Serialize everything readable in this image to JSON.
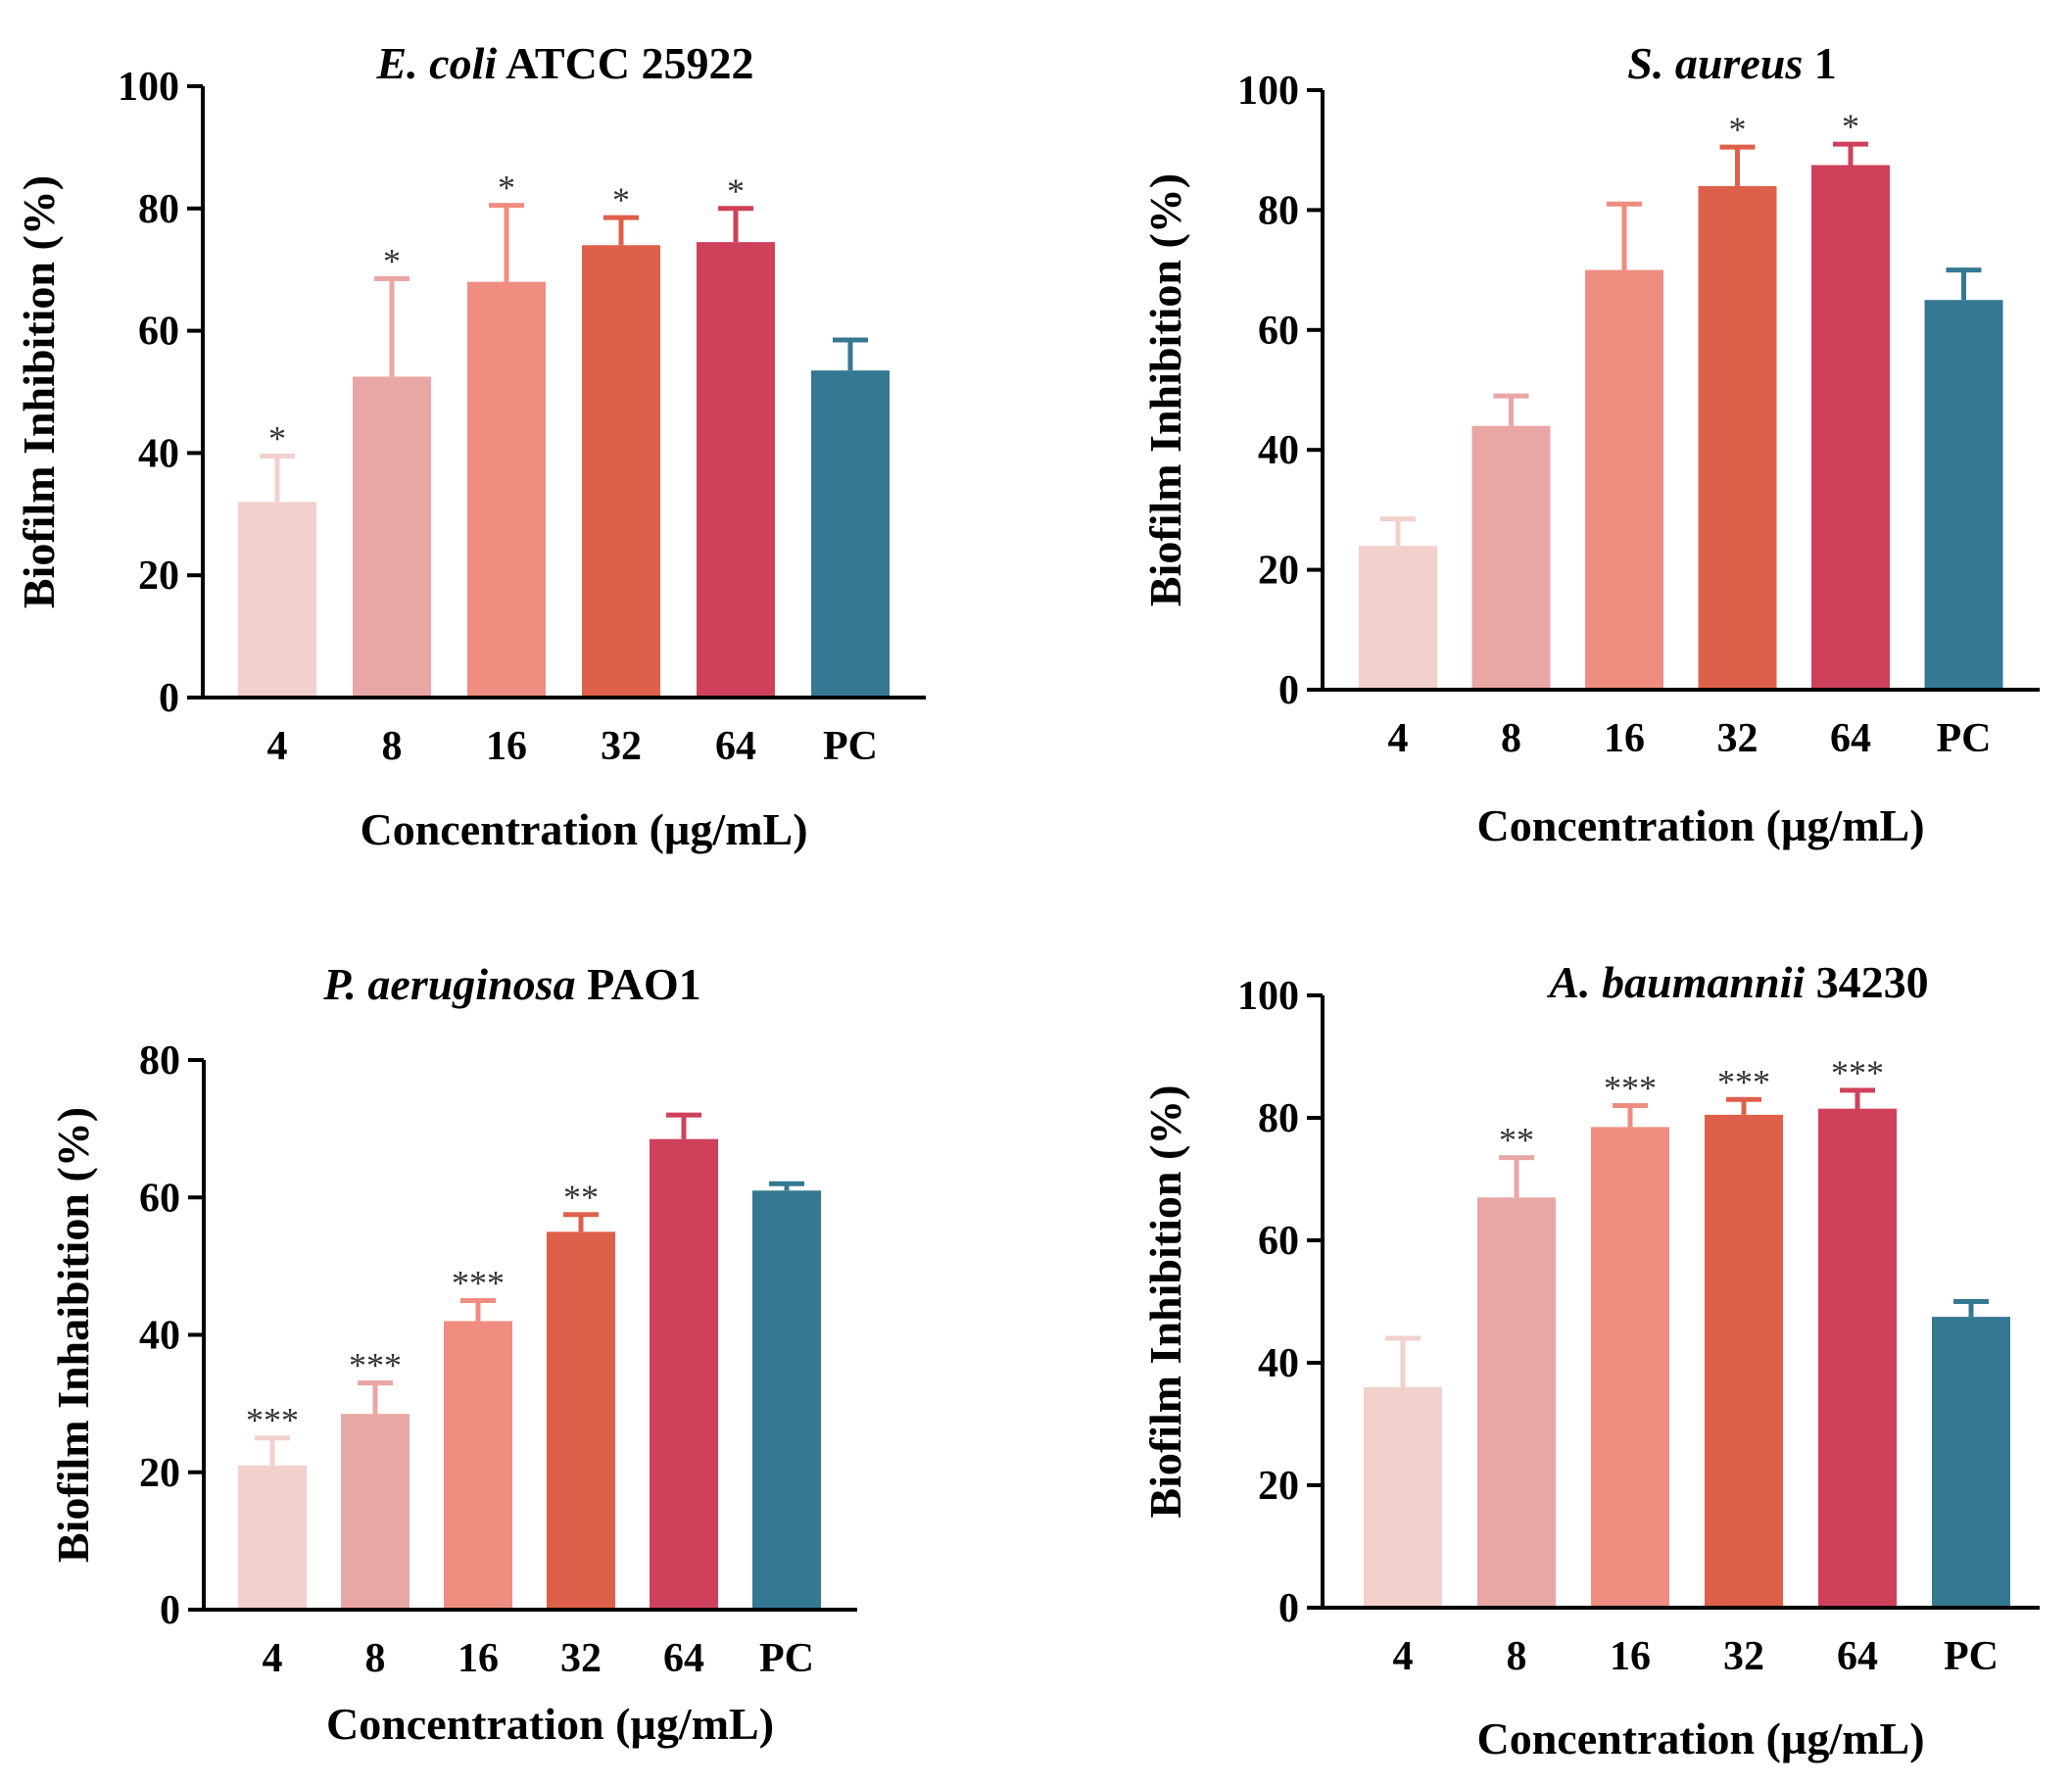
{
  "colors": {
    "c4": "#f2d0cc",
    "c8": "#e8a7a5",
    "c16": "#ef8d80",
    "c32": "#de604a",
    "c64": "#cf405b",
    "cPC": "#347892"
  },
  "chart_data": [
    {
      "type": "bar",
      "title_italic": "E. coli",
      "title_rest": " ATCC 25922",
      "xlabel": "Concentration (µg/mL)",
      "ylabel": "Biofilm Inhibition (%)",
      "ylim": [
        0,
        100
      ],
      "yticks": [
        0,
        20,
        40,
        60,
        80,
        100
      ],
      "categories": [
        "4",
        "8",
        "16",
        "32",
        "64",
        "PC"
      ],
      "values": [
        32,
        52.5,
        68,
        74,
        74.5,
        53.5
      ],
      "errors": [
        7.5,
        16,
        12.5,
        4.5,
        5.5,
        5
      ],
      "significance": [
        "*",
        "*",
        "*",
        "*",
        "*",
        ""
      ]
    },
    {
      "type": "bar",
      "title_italic": "S. aureus",
      "title_rest": " 1",
      "xlabel": "Concentration (µg/mL)",
      "ylabel": "Biofilm Inhibition (%)",
      "ylim": [
        0,
        100
      ],
      "yticks": [
        0,
        20,
        40,
        60,
        80,
        100
      ],
      "categories": [
        "4",
        "8",
        "16",
        "32",
        "64",
        "PC"
      ],
      "values": [
        24,
        44,
        70,
        84,
        87.5,
        65
      ],
      "errors": [
        4.5,
        5,
        11,
        6.5,
        3.5,
        5
      ],
      "significance": [
        "",
        "",
        "",
        "*",
        "*",
        ""
      ]
    },
    {
      "type": "bar",
      "title_italic": "P. aeruginosa",
      "title_rest": " PAO1",
      "xlabel": "Concentration (µg/mL)",
      "ylabel": "Biofilm Inhaibition (%)",
      "ylim": [
        0,
        80
      ],
      "yticks": [
        0,
        20,
        40,
        60,
        80
      ],
      "categories": [
        "4",
        "8",
        "16",
        "32",
        "64",
        "PC"
      ],
      "values": [
        21,
        28.5,
        42,
        55,
        68.5,
        61
      ],
      "errors": [
        4,
        4.5,
        3,
        2.5,
        3.5,
        1
      ],
      "significance": [
        "***",
        "***",
        "***",
        "**",
        "",
        ""
      ]
    },
    {
      "type": "bar",
      "title_italic": "A. baumannii",
      "title_rest": " 34230",
      "xlabel": "Concentration (µg/mL)",
      "ylabel": "Biofilm Inhibition (%)",
      "ylim": [
        0,
        100
      ],
      "yticks": [
        0,
        20,
        40,
        60,
        80,
        100
      ],
      "categories": [
        "4",
        "8",
        "16",
        "32",
        "64",
        "PC"
      ],
      "values": [
        36,
        67,
        78.5,
        80.5,
        81.5,
        47.5
      ],
      "errors": [
        8,
        6.5,
        3.5,
        2.5,
        3,
        2.5
      ],
      "significance": [
        "",
        "**",
        "***",
        "***",
        "***",
        ""
      ]
    }
  ]
}
